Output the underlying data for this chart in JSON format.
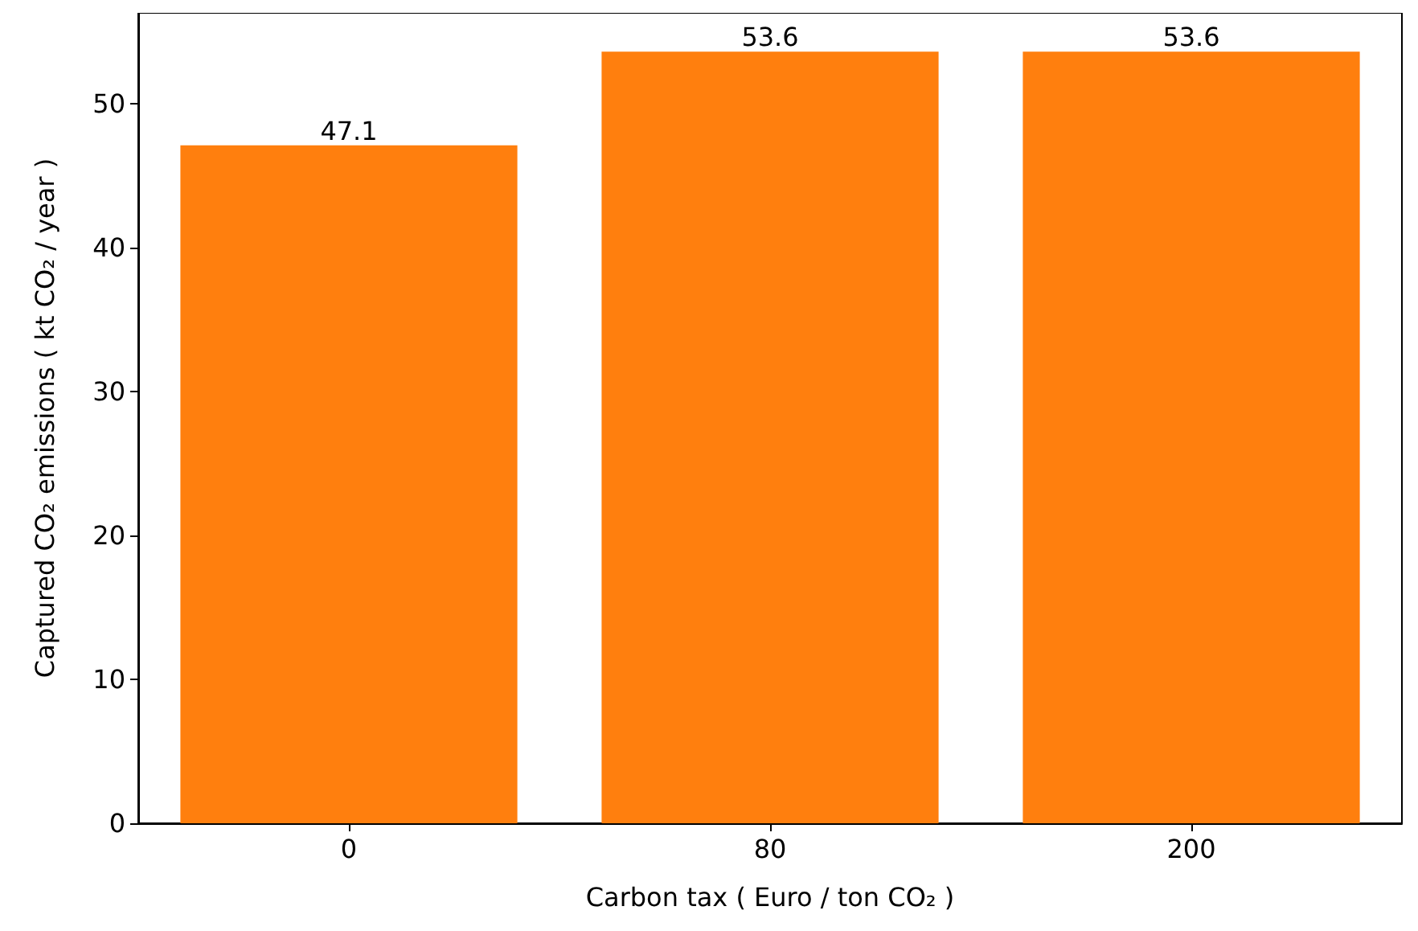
{
  "chart_data": {
    "type": "bar",
    "xlabel": "Carbon tax ( Euro / ton CO₂ )",
    "ylabel": "Captured CO₂ emissions ( kt CO₂ / year )",
    "categories": [
      "0",
      "80",
      "200"
    ],
    "values": [
      47.1,
      53.6,
      53.6
    ],
    "color": "#ff7f0e",
    "ylim": [
      0,
      56.3
    ],
    "yticks": [
      0,
      10,
      20,
      30,
      40,
      50
    ],
    "data_labels": true
  }
}
